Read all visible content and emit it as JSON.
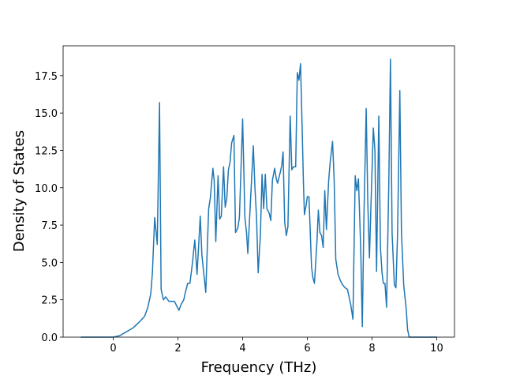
{
  "chart_data": {
    "type": "line",
    "x_label": "Frequency (THz)",
    "y_label": "Density of States",
    "xlim": [
      -1.55,
      10.55
    ],
    "ylim": [
      0,
      19.5
    ],
    "xticks": [
      0,
      2,
      4,
      6,
      8,
      10
    ],
    "yticks": [
      {
        "value": 0,
        "label": "0.0"
      },
      {
        "value": 2.5,
        "label": "2.5"
      },
      {
        "value": 5,
        "label": "5.0"
      },
      {
        "value": 7.5,
        "label": "7.5"
      },
      {
        "value": 10,
        "label": "10.0"
      },
      {
        "value": 12.5,
        "label": "12.5"
      },
      {
        "value": 15,
        "label": "15.0"
      },
      {
        "value": 17.5,
        "label": "17.5"
      }
    ],
    "color": "#1f77b4",
    "x": [
      -1,
      -0.5,
      0,
      0.2,
      0.36,
      0.6,
      0.8,
      0.97,
      1.07,
      1.16,
      1.21,
      1.28,
      1.36,
      1.43,
      1.48,
      1.55,
      1.62,
      1.72,
      1.82,
      1.89,
      1.96,
      2.03,
      2.1,
      2.18,
      2.23,
      2.3,
      2.37,
      2.45,
      2.52,
      2.59,
      2.69,
      2.74,
      2.86,
      2.95,
      3.0,
      3.08,
      3.12,
      3.17,
      3.24,
      3.29,
      3.34,
      3.41,
      3.46,
      3.51,
      3.56,
      3.61,
      3.66,
      3.73,
      3.78,
      3.85,
      3.9,
      4.0,
      4.07,
      4.12,
      4.16,
      4.24,
      4.33,
      4.38,
      4.43,
      4.48,
      4.55,
      4.6,
      4.65,
      4.7,
      4.75,
      4.82,
      4.87,
      4.92,
      4.99,
      5.04,
      5.08,
      5.16,
      5.21,
      5.25,
      5.3,
      5.35,
      5.4,
      5.47,
      5.52,
      5.57,
      5.64,
      5.69,
      5.74,
      5.79,
      5.84,
      5.88,
      5.91,
      5.96,
      6.0,
      6.05,
      6.13,
      6.17,
      6.22,
      6.3,
      6.34,
      6.39,
      6.44,
      6.49,
      6.54,
      6.59,
      6.66,
      6.71,
      6.78,
      6.83,
      6.88,
      6.95,
      7.02,
      7.09,
      7.17,
      7.24,
      7.34,
      7.41,
      7.48,
      7.53,
      7.58,
      7.65,
      7.7,
      7.75,
      7.82,
      7.87,
      7.92,
      7.97,
      8.04,
      8.09,
      8.14,
      8.21,
      8.26,
      8.31,
      8.35,
      8.4,
      8.45,
      8.52,
      8.57,
      8.62,
      8.69,
      8.74,
      8.79,
      8.86,
      8.91,
      8.98,
      9.06,
      9.1,
      9.15,
      10
    ],
    "values": [
      0,
      0,
      0,
      0.1,
      0.3,
      0.6,
      1.0,
      1.4,
      2.0,
      2.9,
      4.3,
      8.0,
      6.2,
      15.7,
      3.2,
      2.5,
      2.7,
      2.4,
      2.4,
      2.4,
      2.1,
      1.8,
      2.2,
      2.5,
      3.0,
      3.6,
      3.6,
      5.0,
      6.5,
      4.2,
      8.1,
      5.5,
      3.0,
      8.6,
      9.3,
      11.3,
      10.5,
      6.4,
      10.8,
      7.9,
      8.1,
      11.4,
      8.7,
      9.3,
      11.2,
      11.7,
      13.0,
      13.5,
      7.0,
      7.3,
      8.0,
      14.6,
      8.0,
      7.0,
      5.6,
      9.0,
      12.8,
      10.0,
      8.0,
      4.3,
      6.9,
      10.9,
      8.6,
      10.9,
      8.6,
      8.3,
      7.8,
      10.5,
      11.3,
      10.6,
      10.3,
      11.0,
      11.5,
      12.4,
      7.7,
      6.8,
      7.4,
      14.8,
      11.2,
      11.4,
      11.4,
      17.7,
      17.2,
      18.3,
      14.0,
      10.3,
      8.2,
      8.8,
      9.4,
      9.4,
      4.7,
      4.0,
      3.6,
      6.5,
      8.5,
      7.0,
      6.8,
      6.0,
      9.8,
      7.2,
      10.5,
      11.8,
      13.1,
      10.5,
      5.2,
      4.2,
      3.8,
      3.5,
      3.3,
      3.2,
      2.2,
      1.2,
      10.8,
      9.8,
      10.6,
      6.0,
      0.7,
      8.0,
      15.3,
      9.0,
      5.3,
      9.0,
      14.0,
      12.5,
      4.4,
      14.8,
      6.0,
      4.3,
      3.6,
      3.6,
      2.0,
      10.5,
      18.6,
      7.0,
      3.5,
      3.3,
      7.0,
      16.5,
      7.0,
      3.5,
      1.8,
      0.5,
      0,
      0
    ]
  }
}
